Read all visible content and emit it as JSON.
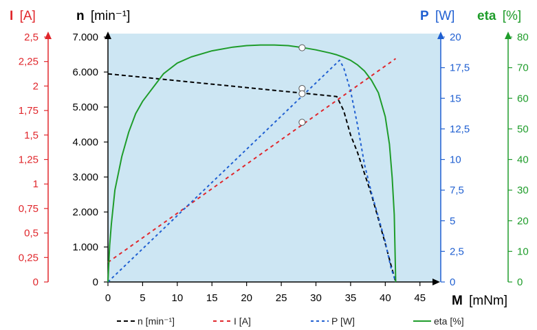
{
  "chart_data": {
    "type": "line",
    "title": "",
    "x_axis": {
      "label_bold": "M",
      "label_unit": "[mNm]",
      "range": [
        0,
        48
      ],
      "ticks": [
        0,
        5,
        10,
        15,
        20,
        25,
        30,
        35,
        40,
        45
      ],
      "tick_labels": [
        "0",
        "5",
        "10",
        "15",
        "20",
        "25",
        "30",
        "35",
        "40",
        "45"
      ]
    },
    "y_axes": {
      "I": {
        "label_bold": "I",
        "label_unit": "[A]",
        "color": "#e0262b",
        "range": [
          0,
          2.5
        ],
        "ticks": [
          0,
          0.25,
          0.5,
          0.75,
          1,
          1.25,
          1.5,
          1.75,
          2,
          2.25,
          2.5
        ],
        "tick_labels": [
          "0",
          "0,25",
          "0,5",
          "0,75",
          "1",
          "1,25",
          "1,5",
          "1,75",
          "2",
          "2,25",
          "2,5"
        ]
      },
      "n": {
        "label_bold": "n",
        "label_unit": "[min⁻¹]",
        "color": "#000000",
        "range": [
          0,
          7000
        ],
        "ticks": [
          0,
          1000,
          2000,
          3000,
          4000,
          5000,
          6000,
          7000
        ],
        "tick_labels": [
          "0",
          "1.000",
          "2.000",
          "3.000",
          "4.000",
          "5.000",
          "6.000",
          "7.000"
        ]
      },
      "P": {
        "label_bold": "P",
        "label_unit": "[W]",
        "color": "#1f5fd1",
        "range": [
          0,
          20
        ],
        "ticks": [
          0,
          2.5,
          5,
          7.5,
          10,
          12.5,
          15,
          17.5,
          20
        ],
        "tick_labels": [
          "0",
          "2,5",
          "5",
          "7,5",
          "10",
          "12,5",
          "15",
          "17,5",
          "20"
        ]
      },
      "eta": {
        "label_bold": "eta",
        "label_unit": "[%]",
        "color": "#1e9c2a",
        "range": [
          0,
          80
        ],
        "ticks": [
          0,
          10,
          20,
          30,
          40,
          50,
          60,
          70,
          80
        ],
        "tick_labels": [
          "0",
          "10",
          "20",
          "30",
          "40",
          "50",
          "60",
          "70",
          "80"
        ]
      }
    },
    "series": [
      {
        "name": "n [min⁻¹]",
        "axis": "n",
        "color": "#000000",
        "dash": "6,4",
        "width": 2,
        "x": [
          0,
          33,
          34,
          35,
          36,
          37,
          38,
          39,
          40,
          40.8,
          41.5
        ],
        "y": [
          5950,
          5300,
          4900,
          4200,
          3700,
          3100,
          2500,
          1800,
          1100,
          500,
          0
        ]
      },
      {
        "name": "I [A]",
        "axis": "I",
        "color": "#e0262b",
        "dash": "5,5",
        "width": 2,
        "x": [
          0,
          41.5
        ],
        "y": [
          0.2,
          2.28
        ]
      },
      {
        "name": "P [W]",
        "axis": "P",
        "color": "#1f5fd1",
        "dash": "4,4",
        "width": 2,
        "x": [
          0,
          33.4,
          34,
          35,
          36,
          37,
          38,
          39,
          40,
          40.8,
          41.5
        ],
        "y": [
          0,
          18.1,
          17.5,
          15.6,
          12.8,
          9.6,
          7.3,
          5.3,
          3.3,
          1.2,
          0
        ]
      },
      {
        "name": "eta [%]",
        "axis": "eta",
        "color": "#1e9c2a",
        "dash": "",
        "width": 2,
        "x": [
          0,
          0.25,
          0.5,
          1,
          2,
          3,
          4,
          5,
          6,
          8,
          10,
          12,
          15,
          18,
          20,
          22,
          24,
          26,
          28,
          30,
          32,
          33,
          34,
          35,
          36,
          37,
          38,
          39,
          40,
          40.6,
          41,
          41.3,
          41.5
        ],
        "y": [
          0,
          12,
          19,
          30,
          41,
          49,
          55,
          59,
          62,
          68,
          71.5,
          73.5,
          75.5,
          76.7,
          77.2,
          77.4,
          77.4,
          77.2,
          76.6,
          75.8,
          74.8,
          74.2,
          73.4,
          72.4,
          70.9,
          68.9,
          65.9,
          61.8,
          54,
          45,
          34,
          22,
          0
        ]
      }
    ],
    "markers": [
      {
        "axis": "eta",
        "x": 28,
        "y": 76.5
      },
      {
        "axis": "P",
        "x": 28,
        "y": 15.8
      },
      {
        "axis": "n",
        "x": 28,
        "y": 5380
      },
      {
        "axis": "I",
        "x": 28,
        "y": 1.63
      }
    ],
    "legend": {
      "placement": "bottom",
      "entries": [
        "n [min⁻¹]",
        "I [A]",
        "P [W]",
        "eta [%]"
      ]
    },
    "grid": false,
    "plot_background": "#cde6f3"
  }
}
